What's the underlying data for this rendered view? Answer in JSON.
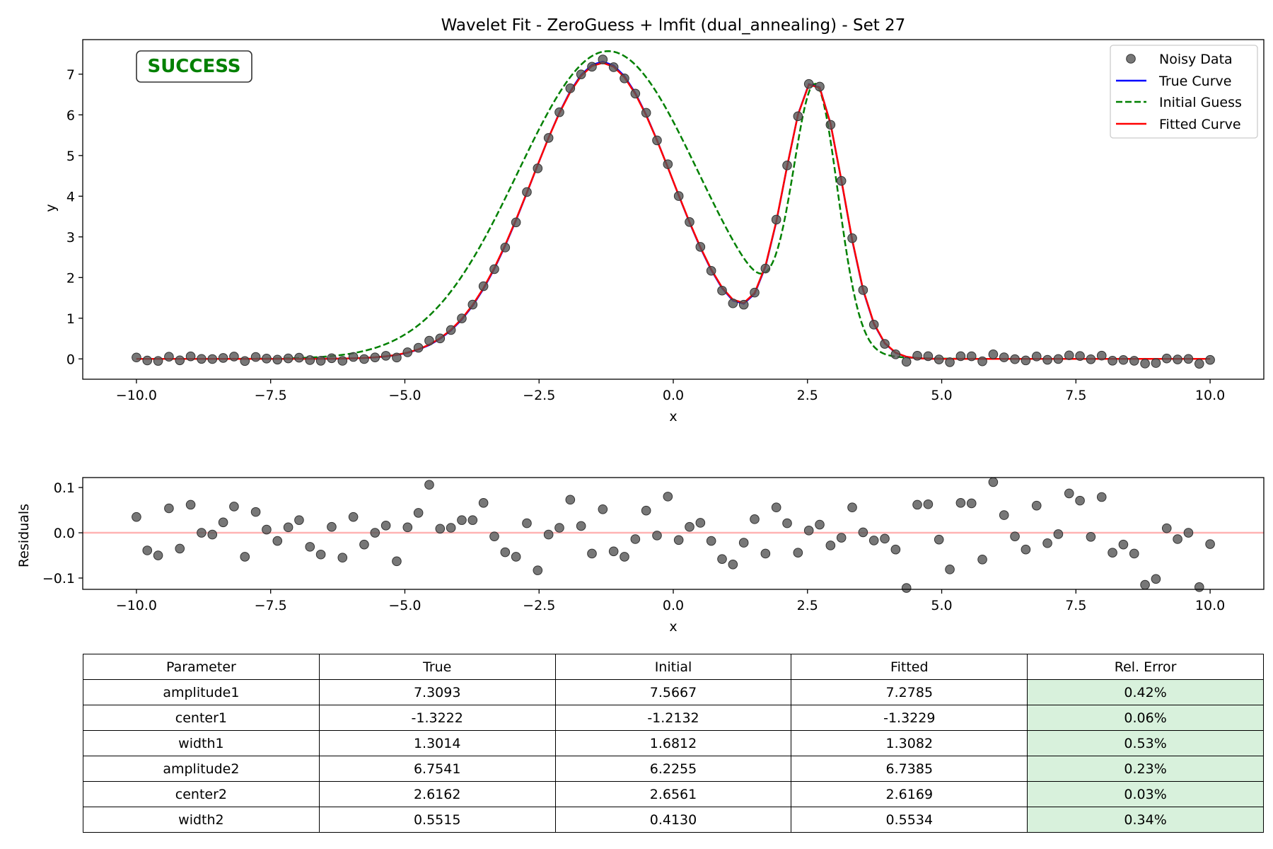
{
  "colors": {
    "noisy_data": "#555555",
    "true_curve": "#0000ff",
    "initial_guess": "#008000",
    "fitted_curve": "#ff0000",
    "zero_line": "#ffb3b3",
    "success_text": "#008000",
    "good_cell": "#d8f1dc"
  },
  "status_badge": "SUCCESS",
  "chart_data": [
    {
      "type": "line",
      "title": "Wavelet Fit - ZeroGuess + lmfit (dual_annealing) - Set 27",
      "xlabel": "x",
      "ylabel": "y",
      "xlim": [
        -11.0,
        11.0
      ],
      "ylim": [
        -0.5,
        7.85
      ],
      "xticks": [
        "−10.0",
        "−7.5",
        "−5.0",
        "−2.5",
        "0.0",
        "2.5",
        "5.0",
        "7.5",
        "10.0"
      ],
      "yticks": [
        "0",
        "1",
        "2",
        "3",
        "4",
        "5",
        "6",
        "7"
      ],
      "legend": [
        "Noisy Data",
        "True Curve",
        "Initial Guess",
        "Fitted Curve"
      ],
      "legend_position": "top-right",
      "model": "sum of two Gaussians",
      "x_range": [
        -10.0,
        10.0
      ],
      "num_points": 100,
      "series": [
        {
          "name": "Noisy Data",
          "style": "markers",
          "values": "true curve + residuals"
        },
        {
          "name": "True Curve",
          "style": "solid",
          "amplitude1": 7.3093,
          "center1": -1.3222,
          "width1": 1.3014,
          "amplitude2": 6.7541,
          "center2": 2.6162,
          "width2": 0.5515
        },
        {
          "name": "Initial Guess",
          "style": "dashed",
          "amplitude1": 7.5667,
          "center1": -1.2132,
          "width1": 1.6812,
          "amplitude2": 6.2255,
          "center2": 2.6561,
          "width2": 0.413
        },
        {
          "name": "Fitted Curve",
          "style": "solid",
          "amplitude1": 7.2785,
          "center1": -1.3229,
          "width1": 1.3082,
          "amplitude2": 6.7385,
          "center2": 2.6169,
          "width2": 0.5534
        }
      ]
    },
    {
      "type": "scatter",
      "xlabel": "x",
      "ylabel": "Residuals",
      "xlim": [
        -11.0,
        11.0
      ],
      "ylim": [
        -0.125,
        0.122
      ],
      "xticks": [
        "−10.0",
        "−7.5",
        "−5.0",
        "−2.5",
        "0.0",
        "2.5",
        "5.0",
        "7.5",
        "10.0"
      ],
      "yticks": [
        "−0.1",
        "0.0",
        "0.1"
      ],
      "zero_line": 0,
      "x_range": [
        -10.0,
        10.0
      ],
      "residuals": [
        0.035,
        -0.039,
        -0.05,
        0.054,
        -0.035,
        0.062,
        0.0,
        -0.004,
        0.023,
        0.058,
        -0.053,
        0.046,
        0.007,
        -0.018,
        0.012,
        0.028,
        -0.031,
        -0.048,
        0.013,
        -0.055,
        0.035,
        -0.026,
        0.0,
        0.016,
        -0.063,
        0.012,
        0.044,
        0.106,
        0.009,
        0.011,
        0.028,
        0.028,
        0.066,
        -0.008,
        -0.043,
        -0.053,
        0.021,
        -0.083,
        -0.004,
        0.011,
        0.073,
        0.015,
        -0.046,
        0.052,
        -0.041,
        -0.053,
        -0.014,
        0.049,
        -0.006,
        0.08,
        -0.016,
        0.013,
        0.022,
        -0.018,
        -0.058,
        -0.07,
        -0.022,
        0.03,
        -0.046,
        0.056,
        0.021,
        -0.044,
        0.005,
        0.018,
        -0.028,
        -0.011,
        0.056,
        0.001,
        -0.017,
        -0.013,
        -0.037,
        -0.122,
        0.062,
        0.063,
        -0.015,
        -0.081,
        0.066,
        0.065,
        -0.059,
        0.112,
        0.039,
        -0.008,
        -0.037,
        0.06,
        -0.023,
        -0.003,
        0.087,
        0.071,
        -0.009,
        0.079,
        -0.044,
        -0.026,
        -0.046,
        -0.115,
        -0.102,
        0.01,
        -0.014,
        0.0,
        -0.12,
        -0.025
      ]
    }
  ],
  "table": {
    "headers": [
      "Parameter",
      "True",
      "Initial",
      "Fitted",
      "Rel. Error"
    ],
    "rows": [
      [
        "amplitude1",
        "7.3093",
        "7.5667",
        "7.2785",
        "0.42%"
      ],
      [
        "center1",
        "-1.3222",
        "-1.2132",
        "-1.3229",
        "0.06%"
      ],
      [
        "width1",
        "1.3014",
        "1.6812",
        "1.3082",
        "0.53%"
      ],
      [
        "amplitude2",
        "6.7541",
        "6.2255",
        "6.7385",
        "0.23%"
      ],
      [
        "center2",
        "2.6162",
        "2.6561",
        "2.6169",
        "0.03%"
      ],
      [
        "width2",
        "0.5515",
        "0.4130",
        "0.5534",
        "0.34%"
      ]
    ]
  }
}
